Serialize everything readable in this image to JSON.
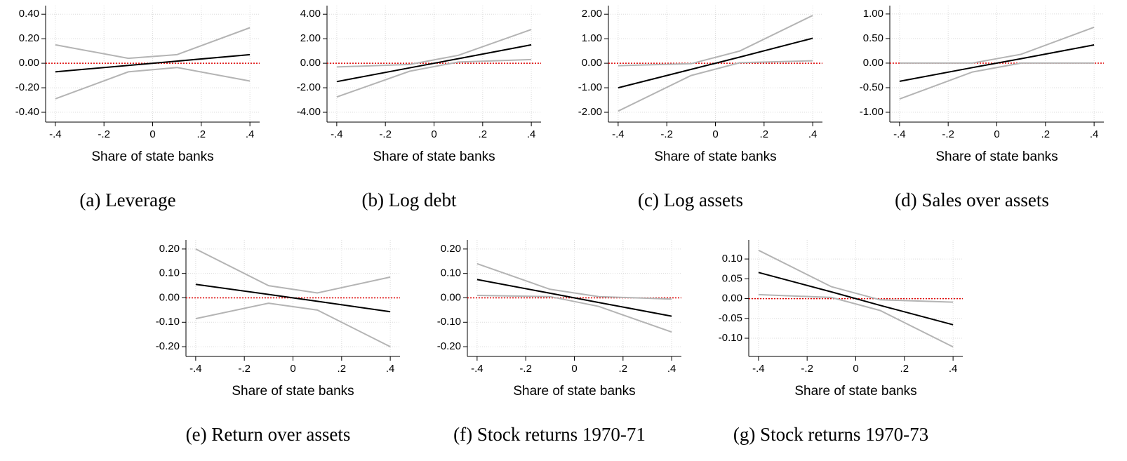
{
  "chart_data": [
    {
      "type": "line",
      "caption": "(a) Leverage",
      "xlabel": "Share of state banks",
      "x": [
        -0.4,
        -0.1,
        0.1,
        0.4
      ],
      "xlim": [
        -0.44,
        0.44
      ],
      "xticks": [
        {
          "value": -0.4,
          "label": "-.4"
        },
        {
          "value": -0.2,
          "label": "-.2"
        },
        0,
        {
          "value": 0.2,
          "label": ".2"
        },
        {
          "value": 0.4,
          "label": ".4"
        }
      ],
      "ylim": [
        -0.48,
        0.47
      ],
      "yticks": [
        {
          "value": -0.4,
          "label": "-0.40"
        },
        {
          "value": -0.2,
          "label": "-0.20"
        },
        {
          "value": 0,
          "label": "0.00"
        },
        {
          "value": 0.2,
          "label": "0.20"
        },
        {
          "value": 0.4,
          "label": "0.40"
        }
      ],
      "grid": true,
      "zero_line": {
        "y": 0,
        "color": "#e00000"
      },
      "series": [
        {
          "color": "#b4b4b4",
          "values": [
            0.15,
            0.04,
            0.07,
            0.29
          ]
        },
        {
          "color": "#b4b4b4",
          "values": [
            -0.29,
            -0.07,
            -0.035,
            -0.145
          ]
        },
        {
          "color": "#000000",
          "values": [
            -0.07,
            -0.0175,
            0.0175,
            0.07
          ]
        }
      ]
    },
    {
      "type": "line",
      "caption": "(b) Log debt",
      "xlabel": "Share of state banks",
      "x": [
        -0.4,
        -0.1,
        0.1,
        0.4
      ],
      "xlim": [
        -0.44,
        0.44
      ],
      "xticks": [
        {
          "value": -0.4,
          "label": "-.4"
        },
        {
          "value": -0.2,
          "label": "-.2"
        },
        0,
        {
          "value": 0.2,
          "label": ".2"
        },
        {
          "value": 0.4,
          "label": ".4"
        }
      ],
      "ylim": [
        -4.8,
        4.7
      ],
      "yticks": [
        {
          "value": -4,
          "label": "-4.00"
        },
        {
          "value": -2,
          "label": "-2.00"
        },
        {
          "value": 0,
          "label": "0.00"
        },
        {
          "value": 2,
          "label": "2.00"
        },
        {
          "value": 4,
          "label": "4.00"
        }
      ],
      "grid": true,
      "zero_line": {
        "y": 0,
        "color": "#e00000"
      },
      "series": [
        {
          "color": "#b4b4b4",
          "values": [
            -0.3,
            -0.1,
            0.65,
            2.75
          ]
        },
        {
          "color": "#b4b4b4",
          "values": [
            -2.75,
            -0.65,
            0.1,
            0.3
          ]
        },
        {
          "color": "#000000",
          "values": [
            -1.5,
            -0.375,
            0.375,
            1.5
          ]
        }
      ]
    },
    {
      "type": "line",
      "caption": "(c) Log assets",
      "xlabel": "Share of state banks",
      "x": [
        -0.4,
        -0.1,
        0.1,
        0.4
      ],
      "xlim": [
        -0.44,
        0.44
      ],
      "xticks": [
        {
          "value": -0.4,
          "label": "-.4"
        },
        {
          "value": -0.2,
          "label": "-.2"
        },
        0,
        {
          "value": 0.2,
          "label": ".2"
        },
        {
          "value": 0.4,
          "label": ".4"
        }
      ],
      "ylim": [
        -2.4,
        2.35
      ],
      "yticks": [
        {
          "value": -2,
          "label": "-2.00"
        },
        {
          "value": -1,
          "label": "-1.00"
        },
        {
          "value": 0,
          "label": "0.00"
        },
        {
          "value": 1,
          "label": "1.00"
        },
        {
          "value": 2,
          "label": "2.00"
        }
      ],
      "grid": true,
      "zero_line": {
        "y": 0,
        "color": "#e00000"
      },
      "series": [
        {
          "color": "#b4b4b4",
          "values": [
            -0.1,
            -0.02,
            0.5,
            1.95
          ]
        },
        {
          "color": "#b4b4b4",
          "values": [
            -1.95,
            -0.5,
            0.02,
            0.1
          ]
        },
        {
          "color": "#000000",
          "values": [
            -1.0,
            -0.25,
            0.25,
            1.02
          ]
        }
      ]
    },
    {
      "type": "line",
      "caption": "(d) Sales over assets",
      "xlabel": "Share of state banks",
      "x": [
        -0.4,
        -0.1,
        0.1,
        0.4
      ],
      "xlim": [
        -0.44,
        0.44
      ],
      "xticks": [
        {
          "value": -0.4,
          "label": "-.4"
        },
        {
          "value": -0.2,
          "label": "-.2"
        },
        0,
        {
          "value": 0.2,
          "label": ".2"
        },
        {
          "value": 0.4,
          "label": ".4"
        }
      ],
      "ylim": [
        -1.2,
        1.17
      ],
      "yticks": [
        {
          "value": -1,
          "label": "-1.00"
        },
        {
          "value": -0.5,
          "label": "-0.50"
        },
        {
          "value": 0,
          "label": "0.00"
        },
        {
          "value": 0.5,
          "label": "0.50"
        },
        {
          "value": 1,
          "label": "1.00"
        }
      ],
      "grid": true,
      "zero_line": {
        "y": 0,
        "color": "#e00000"
      },
      "series": [
        {
          "color": "#b4b4b4",
          "values": [
            0,
            0,
            0.18,
            0.73
          ]
        },
        {
          "color": "#b4b4b4",
          "values": [
            -0.73,
            -0.18,
            0,
            0
          ]
        },
        {
          "color": "#000000",
          "values": [
            -0.37,
            -0.09,
            0.09,
            0.37
          ]
        }
      ]
    },
    {
      "type": "line",
      "caption": "(e) Return over assets",
      "xlabel": "Share of state banks",
      "x": [
        -0.4,
        -0.1,
        0.1,
        0.4
      ],
      "xlim": [
        -0.44,
        0.44
      ],
      "xticks": [
        {
          "value": -0.4,
          "label": "-.4"
        },
        {
          "value": -0.2,
          "label": "-.2"
        },
        0,
        {
          "value": 0.2,
          "label": ".2"
        },
        {
          "value": 0.4,
          "label": ".4"
        }
      ],
      "ylim": [
        -0.24,
        0.237
      ],
      "yticks": [
        {
          "value": -0.2,
          "label": "-0.20"
        },
        {
          "value": -0.1,
          "label": "-0.10"
        },
        {
          "value": 0,
          "label": "0.00"
        },
        {
          "value": 0.1,
          "label": "0.10"
        },
        {
          "value": 0.2,
          "label": "0.20"
        }
      ],
      "grid": true,
      "zero_line": {
        "y": 0,
        "color": "#e00000"
      },
      "series": [
        {
          "color": "#b4b4b4",
          "values": [
            0.2,
            0.05,
            0.02,
            0.085
          ]
        },
        {
          "color": "#b4b4b4",
          "values": [
            -0.085,
            -0.022,
            -0.05,
            -0.2
          ]
        },
        {
          "color": "#000000",
          "values": [
            0.055,
            0.014,
            -0.014,
            -0.057
          ]
        }
      ]
    },
    {
      "type": "line",
      "caption": "(f) Stock returns 1970-71",
      "xlabel": "Share of state banks",
      "x": [
        -0.4,
        -0.1,
        0.1,
        0.4
      ],
      "xlim": [
        -0.44,
        0.44
      ],
      "xticks": [
        {
          "value": -0.4,
          "label": "-.4"
        },
        {
          "value": -0.2,
          "label": "-.2"
        },
        0,
        {
          "value": 0.2,
          "label": ".2"
        },
        {
          "value": 0.4,
          "label": ".4"
        }
      ],
      "ylim": [
        -0.24,
        0.237
      ],
      "yticks": [
        {
          "value": -0.2,
          "label": "-0.20"
        },
        {
          "value": -0.1,
          "label": "-0.10"
        },
        {
          "value": 0,
          "label": "0.00"
        },
        {
          "value": 0.1,
          "label": "0.10"
        },
        {
          "value": 0.2,
          "label": "0.20"
        }
      ],
      "grid": true,
      "zero_line": {
        "y": 0,
        "color": "#e00000"
      },
      "series": [
        {
          "color": "#b4b4b4",
          "values": [
            0.14,
            0.035,
            0.005,
            -0.005
          ]
        },
        {
          "color": "#b4b4b4",
          "values": [
            0.01,
            0.005,
            -0.035,
            -0.14
          ]
        },
        {
          "color": "#000000",
          "values": [
            0.075,
            0.019,
            -0.019,
            -0.075
          ]
        }
      ]
    },
    {
      "type": "line",
      "caption": "(g) Stock returns 1970-73",
      "xlabel": "Share of state banks",
      "x": [
        -0.4,
        -0.1,
        0.1,
        0.4
      ],
      "xlim": [
        -0.44,
        0.44
      ],
      "xticks": [
        {
          "value": -0.4,
          "label": "-.4"
        },
        {
          "value": -0.2,
          "label": "-.2"
        },
        0,
        {
          "value": 0.2,
          "label": ".2"
        },
        {
          "value": 0.4,
          "label": ".4"
        }
      ],
      "ylim": [
        -0.146,
        0.148
      ],
      "yticks": [
        {
          "value": -0.1,
          "label": "-0.10"
        },
        {
          "value": -0.05,
          "label": "-0.05"
        },
        {
          "value": 0,
          "label": "0.00"
        },
        {
          "value": 0.05,
          "label": "0.05"
        },
        {
          "value": 0.1,
          "label": "0.10"
        }
      ],
      "grid": true,
      "zero_line": {
        "y": 0,
        "color": "#e00000"
      },
      "series": [
        {
          "color": "#b4b4b4",
          "values": [
            0.122,
            0.03,
            -0.003,
            -0.009
          ]
        },
        {
          "color": "#b4b4b4",
          "values": [
            0.01,
            0.003,
            -0.03,
            -0.122
          ]
        },
        {
          "color": "#000000",
          "values": [
            0.066,
            0.017,
            -0.017,
            -0.066
          ]
        }
      ]
    }
  ]
}
